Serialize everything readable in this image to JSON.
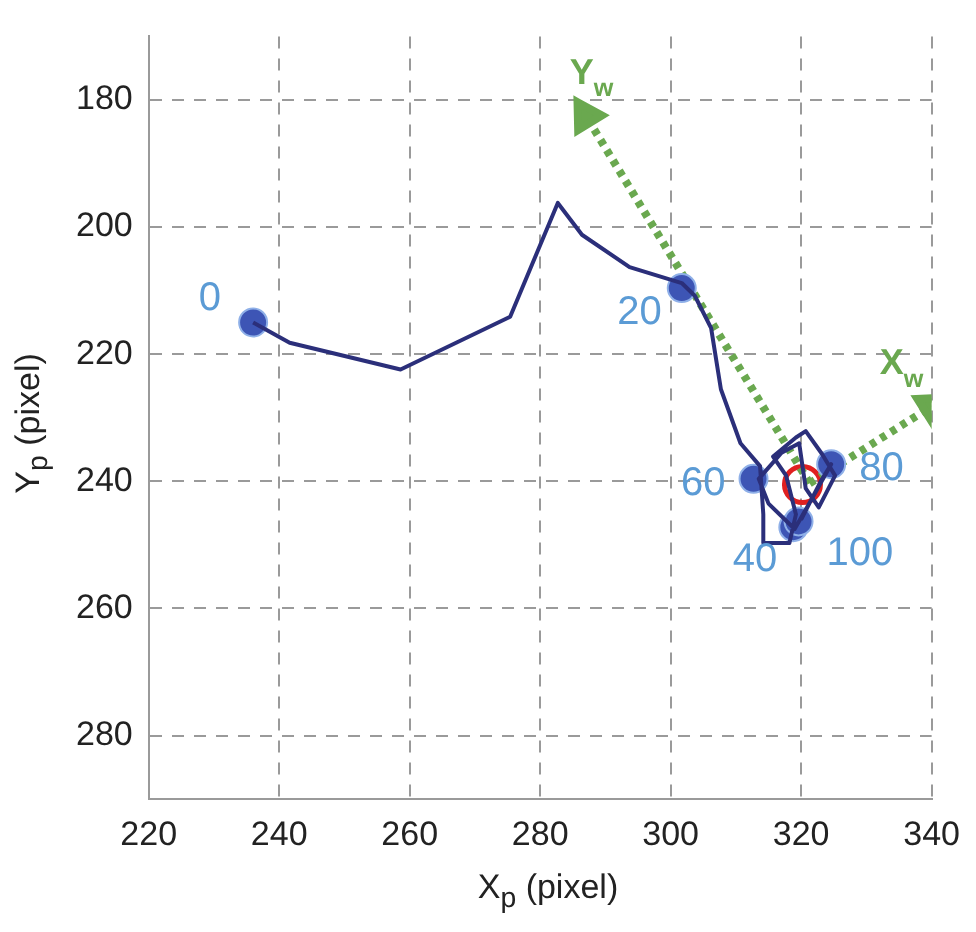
{
  "chart_data": {
    "type": "line",
    "xlabel": "X$_{p}$ (pixel)",
    "ylabel": "Y$_{p}$ (pixel)",
    "xlim": [
      220,
      340
    ],
    "xticks": [
      220,
      240,
      260,
      280,
      300,
      320,
      340
    ],
    "ylim": [
      290,
      170
    ],
    "yticks": [
      180,
      200,
      220,
      240,
      260,
      280
    ],
    "grid": true,
    "series": [
      {
        "type": "line",
        "color": "#2b2f7a",
        "marker": "none",
        "line_style": "solid",
        "x": [
          236.0,
          241.6,
          258.6,
          275.4,
          282.7,
          286.4,
          293.7,
          301.7,
          303.7,
          306.2,
          307.7,
          310.7,
          313.7,
          314.2,
          314.2,
          318.2,
          319.2,
          317.7,
          315.7,
          319.2,
          320.7,
          323.2,
          325.2,
          322.7,
          320.7,
          319.7,
          317.0,
          313.5,
          315.0,
          319.0,
          321.5,
          324.6,
          323.0,
          320.0
        ],
        "values": [
          215.0,
          218.2,
          222.4,
          214.1,
          196.2,
          201.2,
          206.3,
          208.8,
          210.8,
          215.9,
          225.5,
          234.0,
          237.6,
          245.2,
          249.7,
          249.7,
          245.2,
          239.1,
          236.1,
          233.1,
          232.1,
          235.7,
          239.1,
          244.1,
          241.1,
          234.0,
          235.5,
          239.6,
          243.5,
          247.5,
          243.0,
          237.3,
          240.0,
          246.0
        ]
      },
      {
        "type": "scatter",
        "color": "#3d55b5",
        "marker": "circle",
        "x": [
          236.0,
          301.7,
          318.8,
          312.7,
          324.6,
          319.6
        ],
        "values": [
          215.0,
          209.6,
          247.2,
          239.6,
          237.3,
          246.3
        ]
      },
      {
        "type": "line",
        "name": "X$_{w}$",
        "color": "#6aa84f",
        "marker": "triangle",
        "line_style": "dotted",
        "x": [
          321.3,
          340.0
        ],
        "values": [
          240.3,
          228.2
        ]
      },
      {
        "type": "line",
        "name": "Y$_{w}$",
        "color": "#6aa84f",
        "marker": "triangle",
        "line_style": "dotted",
        "x": [
          321.3,
          287.0
        ],
        "values": [
          240.3,
          182.5
        ]
      },
      {
        "type": "scatter",
        "color": "#e02020",
        "marker": "circle",
        "x": [
          320.2
        ],
        "values": [
          240.5
        ]
      }
    ],
    "annotations": [
      {
        "text": "0",
        "x": 236.0,
        "y": 215.0
      },
      {
        "text": "20",
        "x": 301.7,
        "y": 209.6
      },
      {
        "text": "40",
        "x": 318.8,
        "y": 247.2
      },
      {
        "text": "60",
        "x": 312.7,
        "y": 239.6
      },
      {
        "text": "80",
        "x": 324.6,
        "y": 237.3
      },
      {
        "text": "100",
        "x": 319.6,
        "y": 246.3
      }
    ]
  }
}
